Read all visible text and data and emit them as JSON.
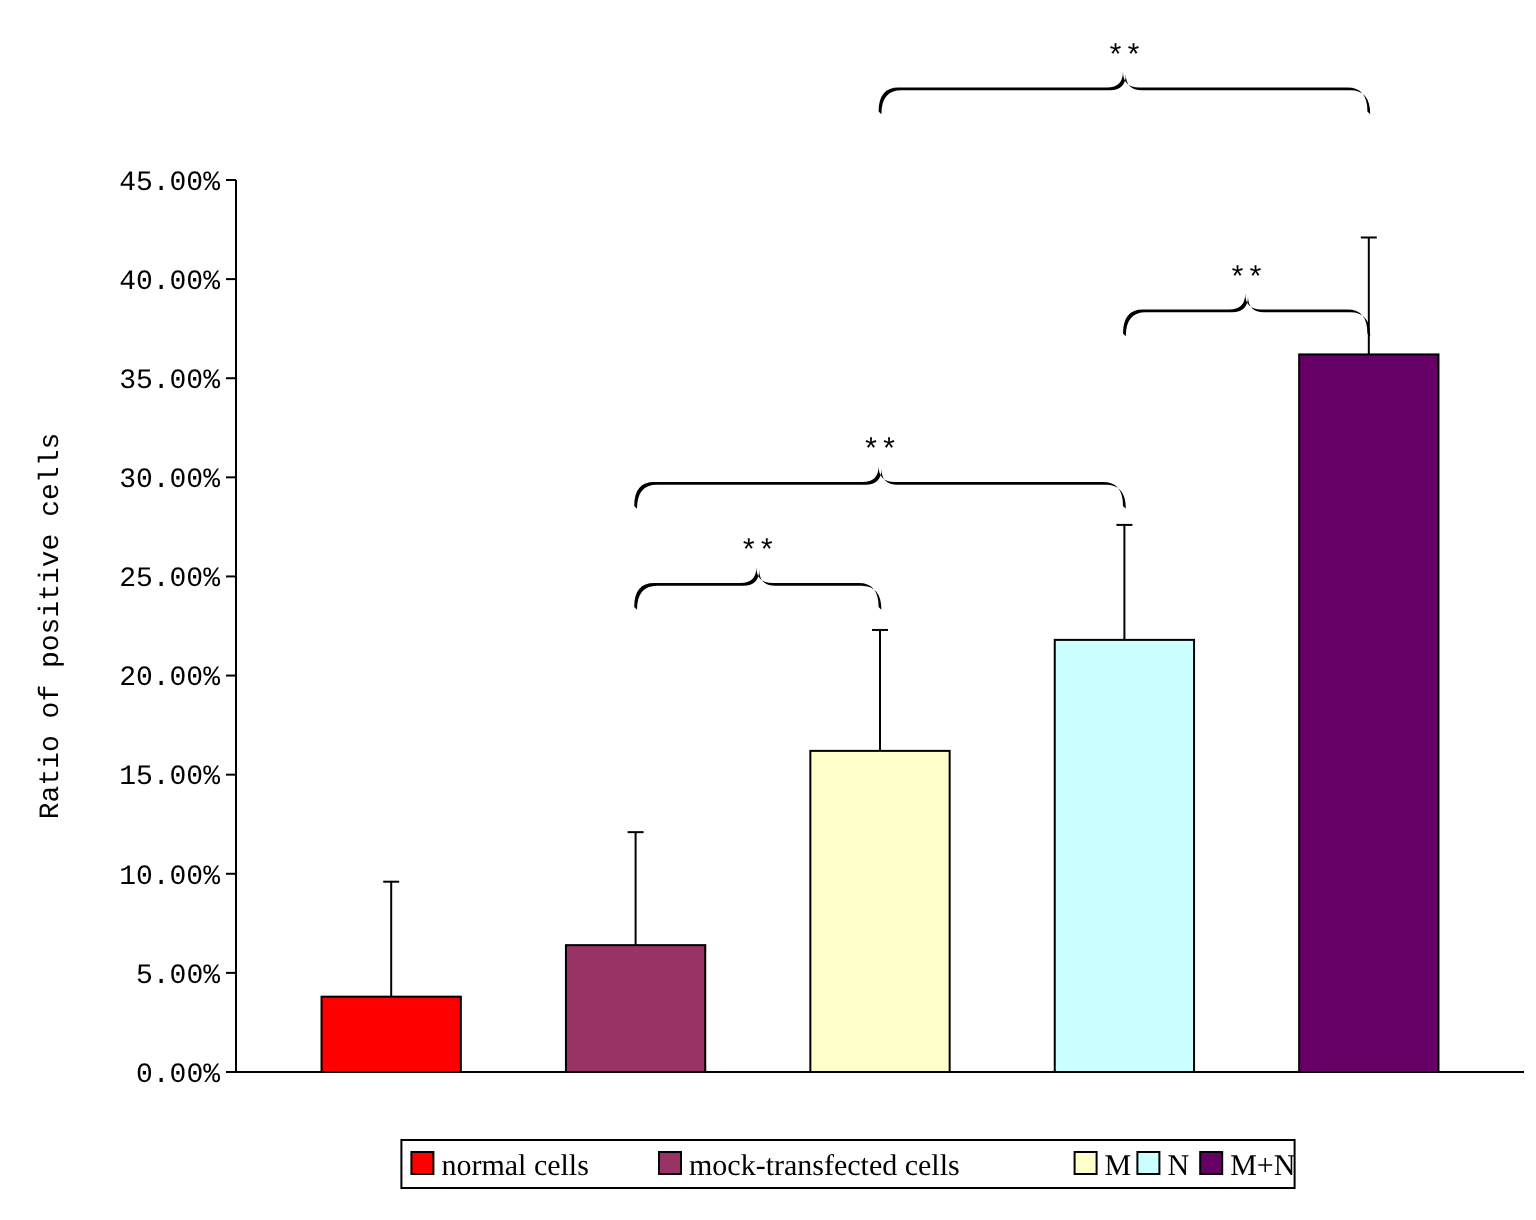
{
  "chart_data": {
    "type": "bar",
    "ylabel": "Ratio of positive cells",
    "categories": [
      null
    ],
    "series": [
      {
        "name": "normal cells",
        "color": "#ff0000",
        "values": [
          3.8
        ],
        "errors": [
          [
            3.8,
            9.6
          ]
        ]
      },
      {
        "name": "mock-transfected cells",
        "color": "#993366",
        "values": [
          6.4
        ],
        "errors": [
          [
            6.4,
            12.1
          ]
        ]
      },
      {
        "name": "M",
        "color": "#ffffcc",
        "values": [
          16.2
        ],
        "errors": [
          [
            16.2,
            22.3
          ]
        ]
      },
      {
        "name": "N",
        "color": "#ccffff",
        "values": [
          21.8
        ],
        "errors": [
          [
            21.8,
            27.6
          ]
        ]
      },
      {
        "name": "M+N",
        "color": "#660066",
        "values": [
          36.2
        ],
        "errors": [
          [
            36.2,
            42.1
          ]
        ]
      }
    ],
    "ylim": [
      0,
      45
    ],
    "yticks": [
      {
        "value": 0,
        "label": "0.00%"
      },
      {
        "value": 5,
        "label": "5.00%"
      },
      {
        "value": 10,
        "label": "10.00%"
      },
      {
        "value": 15,
        "label": "15.00%"
      },
      {
        "value": 20,
        "label": "20.00%"
      },
      {
        "value": 25,
        "label": "25.00%"
      },
      {
        "value": 30,
        "label": "30.00%"
      },
      {
        "value": 35,
        "label": "35.00%"
      },
      {
        "value": 40,
        "label": "40.00%"
      },
      {
        "value": 45,
        "label": "45.00%"
      }
    ],
    "annotations": [
      "**",
      "**",
      "**",
      "**"
    ],
    "legend": "bottom",
    "grid": false
  }
}
